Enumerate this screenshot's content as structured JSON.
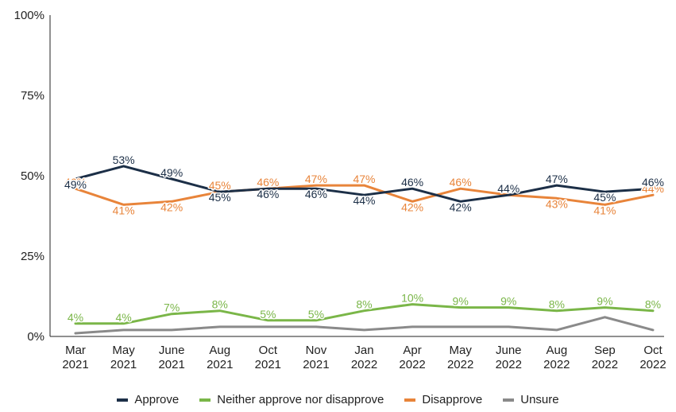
{
  "chart_data": {
    "type": "line",
    "categories": [
      "Mar\n2021",
      "May\n2021",
      "June\n2021",
      "Aug\n2021",
      "Oct\n2021",
      "Nov\n2021",
      "Jan\n2022",
      "Apr\n2022",
      "May\n2022",
      "June\n2022",
      "Aug\n2022",
      "Sep\n2022",
      "Oct\n2022"
    ],
    "y_ticks": [
      "0%",
      "25%",
      "50%",
      "75%",
      "100%"
    ],
    "ylim": [
      0,
      100
    ],
    "grid": false,
    "legend_position": "bottom",
    "series": [
      {
        "name": "Approve",
        "color": "#1c2f47",
        "values": [
          49,
          53,
          49,
          45,
          46,
          46,
          44,
          46,
          42,
          44,
          47,
          45,
          46
        ],
        "labels": [
          "49%",
          "53%",
          "49%",
          "45%",
          "46%",
          "46%",
          "44%",
          "46%",
          "42%",
          "44%",
          "47%",
          "45%",
          "46%"
        ],
        "label_sides": [
          "below",
          "above",
          "above",
          "below",
          "below",
          "below",
          "below",
          "above",
          "below",
          "above",
          "above",
          "below",
          "above"
        ]
      },
      {
        "name": "Neither approve nor disapprove",
        "color": "#7ab648",
        "values": [
          4,
          4,
          7,
          8,
          5,
          5,
          8,
          10,
          9,
          9,
          8,
          9,
          8
        ],
        "labels": [
          "4%",
          "4%",
          "7%",
          "8%",
          "5%",
          "5%",
          "8%",
          "10%",
          "9%",
          "9%",
          "8%",
          "9%",
          "8%"
        ],
        "label_sides": [
          "above",
          "above",
          "above",
          "above",
          "above",
          "above",
          "above",
          "above",
          "above",
          "above",
          "above",
          "above",
          "above"
        ]
      },
      {
        "name": "Disapprove",
        "color": "#e8843a",
        "values": [
          46,
          41,
          42,
          45,
          46,
          47,
          47,
          42,
          46,
          44,
          43,
          41,
          44
        ],
        "labels": [
          "46%",
          "41%",
          "42%",
          "45%",
          "46%",
          "47%",
          "47%",
          "42%",
          "46%",
          "44%",
          "43%",
          "41%",
          "44%"
        ],
        "label_sides": [
          "above",
          "below",
          "below",
          "above",
          "above",
          "above",
          "above",
          "below",
          "above",
          "above",
          "below",
          "below",
          "above"
        ]
      },
      {
        "name": "Unsure",
        "color": "#8a8a8a",
        "values": [
          1,
          2,
          2,
          3,
          3,
          3,
          2,
          3,
          3,
          3,
          2,
          6,
          2
        ]
      }
    ]
  }
}
